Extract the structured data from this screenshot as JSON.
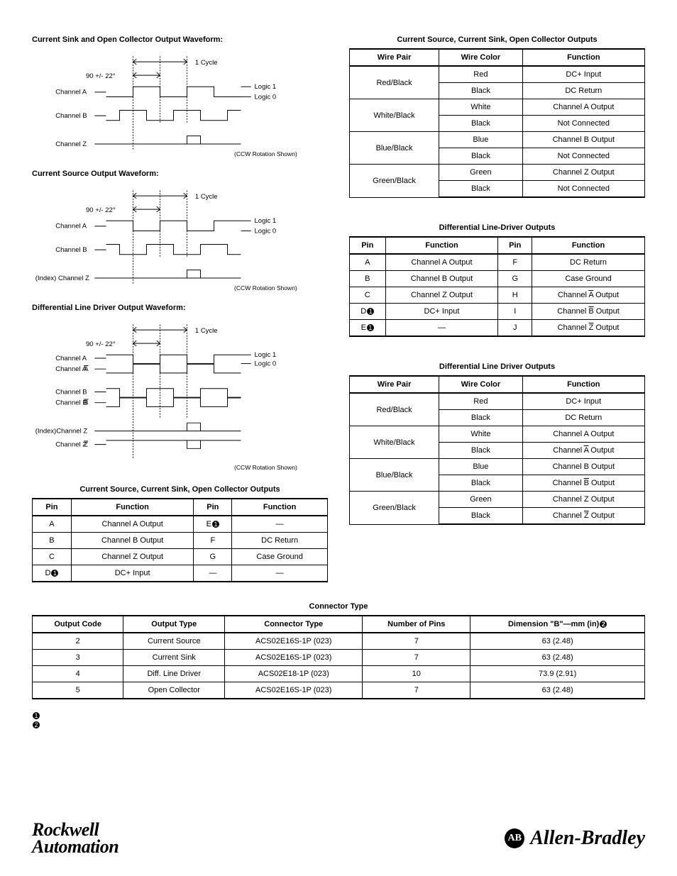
{
  "left": {
    "wave1": {
      "title": "Current Sink and Open Collector Output Waveform:",
      "phase": "90 +/- 22°",
      "cycle": "1 Cycle",
      "logic1": "Logic 1",
      "logic0": "Logic 0",
      "chA": "Channel A",
      "chB": "Channel B",
      "chZ": "Channel Z",
      "note": "(CCW Rotation Shown)"
    },
    "wave2": {
      "title": "Current Source Output Waveform:",
      "phase": "90 +/- 22°",
      "cycle": "1 Cycle",
      "logic1": "Logic 1",
      "logic0": "Logic 0",
      "chA": "Channel A",
      "chB": "Channel B",
      "chZ": "(Index) Channel Z",
      "note": "(CCW Rotation Shown)"
    },
    "wave3": {
      "title": "Differential Line Driver Output Waveform:",
      "phase": "90 +/- 22°",
      "cycle": "1 Cycle",
      "logic1": "Logic 1",
      "logic0": "Logic 0",
      "chA": "Channel A",
      "chAbar": "Channel A",
      "chB": "Channel B",
      "chBbar": "Channel B",
      "chZ": "(Index)Channel Z",
      "chZbar": "Channel Z",
      "note": "(CCW Rotation Shown)"
    },
    "table1": {
      "caption": "Current Source, Current Sink, Open Collector Outputs",
      "headers": [
        "Pin",
        "Function",
        "Pin",
        "Function"
      ],
      "rows": [
        [
          "A",
          "Channel A Output",
          "E",
          "—"
        ],
        [
          "B",
          "Channel B Output",
          "F",
          "DC Return"
        ],
        [
          "C",
          "Channel Z Output",
          "G",
          "Case Ground"
        ],
        [
          "D",
          "DC+ Input",
          "—",
          "—"
        ]
      ],
      "note_rows": {
        "0": 2,
        "3": 0
      }
    }
  },
  "right": {
    "table1": {
      "caption": "Current Source, Current Sink, Open Collector Outputs",
      "headers": [
        "Wire Pair",
        "Wire Color",
        "Function"
      ],
      "groups": [
        {
          "pair": "Red/Black",
          "rows": [
            [
              "Red",
              "DC+ Input"
            ],
            [
              "Black",
              "DC Return"
            ]
          ]
        },
        {
          "pair": "White/Black",
          "rows": [
            [
              "White",
              "Channel A Output"
            ],
            [
              "Black",
              "Not Connected"
            ]
          ]
        },
        {
          "pair": "Blue/Black",
          "rows": [
            [
              "Blue",
              "Channel B Output"
            ],
            [
              "Black",
              "Not Connected"
            ]
          ]
        },
        {
          "pair": "Green/Black",
          "rows": [
            [
              "Green",
              "Channel Z Output"
            ],
            [
              "Black",
              "Not Connected"
            ]
          ]
        }
      ]
    },
    "table2": {
      "caption": "Differential Line-Driver Outputs",
      "headers": [
        "Pin",
        "Function",
        "Pin",
        "Function"
      ],
      "rows": [
        [
          "A",
          "Channel A Output",
          "F",
          "DC Return"
        ],
        [
          "B",
          "Channel B Output",
          "G",
          "Case Ground"
        ],
        [
          "C",
          "Channel Z Output",
          "H",
          "Channel A Output"
        ],
        [
          "D",
          "DC+ Input",
          "I",
          "Channel B Output"
        ],
        [
          "E",
          "—",
          "J",
          "Channel Z Output"
        ]
      ],
      "overline": {
        "2": 3,
        "3": 3,
        "4": 3
      },
      "note_rows": {
        "3": 0,
        "4": 0
      }
    },
    "table3": {
      "caption": "Differential Line Driver Outputs",
      "headers": [
        "Wire Pair",
        "Wire Color",
        "Function"
      ],
      "groups": [
        {
          "pair": "Red/Black",
          "rows": [
            [
              "Red",
              "DC+ Input"
            ],
            [
              "Black",
              "DC Return"
            ]
          ]
        },
        {
          "pair": "White/Black",
          "rows": [
            [
              "White",
              "Channel A Output"
            ],
            [
              "Black",
              "Channel A Output"
            ]
          ],
          "overline": [
            1
          ]
        },
        {
          "pair": "Blue/Black",
          "rows": [
            [
              "Blue",
              "Channel B Output"
            ],
            [
              "Black",
              "Channel B Output"
            ]
          ],
          "overline": [
            1
          ]
        },
        {
          "pair": "Green/Black",
          "rows": [
            [
              "Green",
              "Channel Z Output"
            ],
            [
              "Black",
              "Channel Z Output"
            ]
          ],
          "overline": [
            1
          ]
        }
      ]
    }
  },
  "connector": {
    "caption": "Connector Type",
    "headers": [
      "Output Code",
      "Output Type",
      "Connector Type",
      "Number of Pins",
      "Dimension \"B\"—mm (in)"
    ],
    "header_note_col": 4,
    "rows": [
      [
        "2",
        "Current Source",
        "ACS02E16S-1P (023)",
        "7",
        "63 (2.48)"
      ],
      [
        "3",
        "Current Sink",
        "ACS02E16S-1P (023)",
        "7",
        "63 (2.48)"
      ],
      [
        "4",
        "Diff. Line Driver",
        "ACS02E18-1P (023)",
        "10",
        "73.9 (2.91)"
      ],
      [
        "5",
        "Open Collector",
        "ACS02E16S-1P (023)",
        "7",
        "63 (2.48)"
      ]
    ]
  },
  "footnotes": {
    "a": "➊",
    "b": "➋"
  },
  "footer": {
    "rockwell1": "Rockwell",
    "rockwell2": "Automation",
    "ab": "Allen-Bradley"
  },
  "colors": {
    "text": "#000000",
    "bg": "#ffffff",
    "line": "#000000"
  }
}
